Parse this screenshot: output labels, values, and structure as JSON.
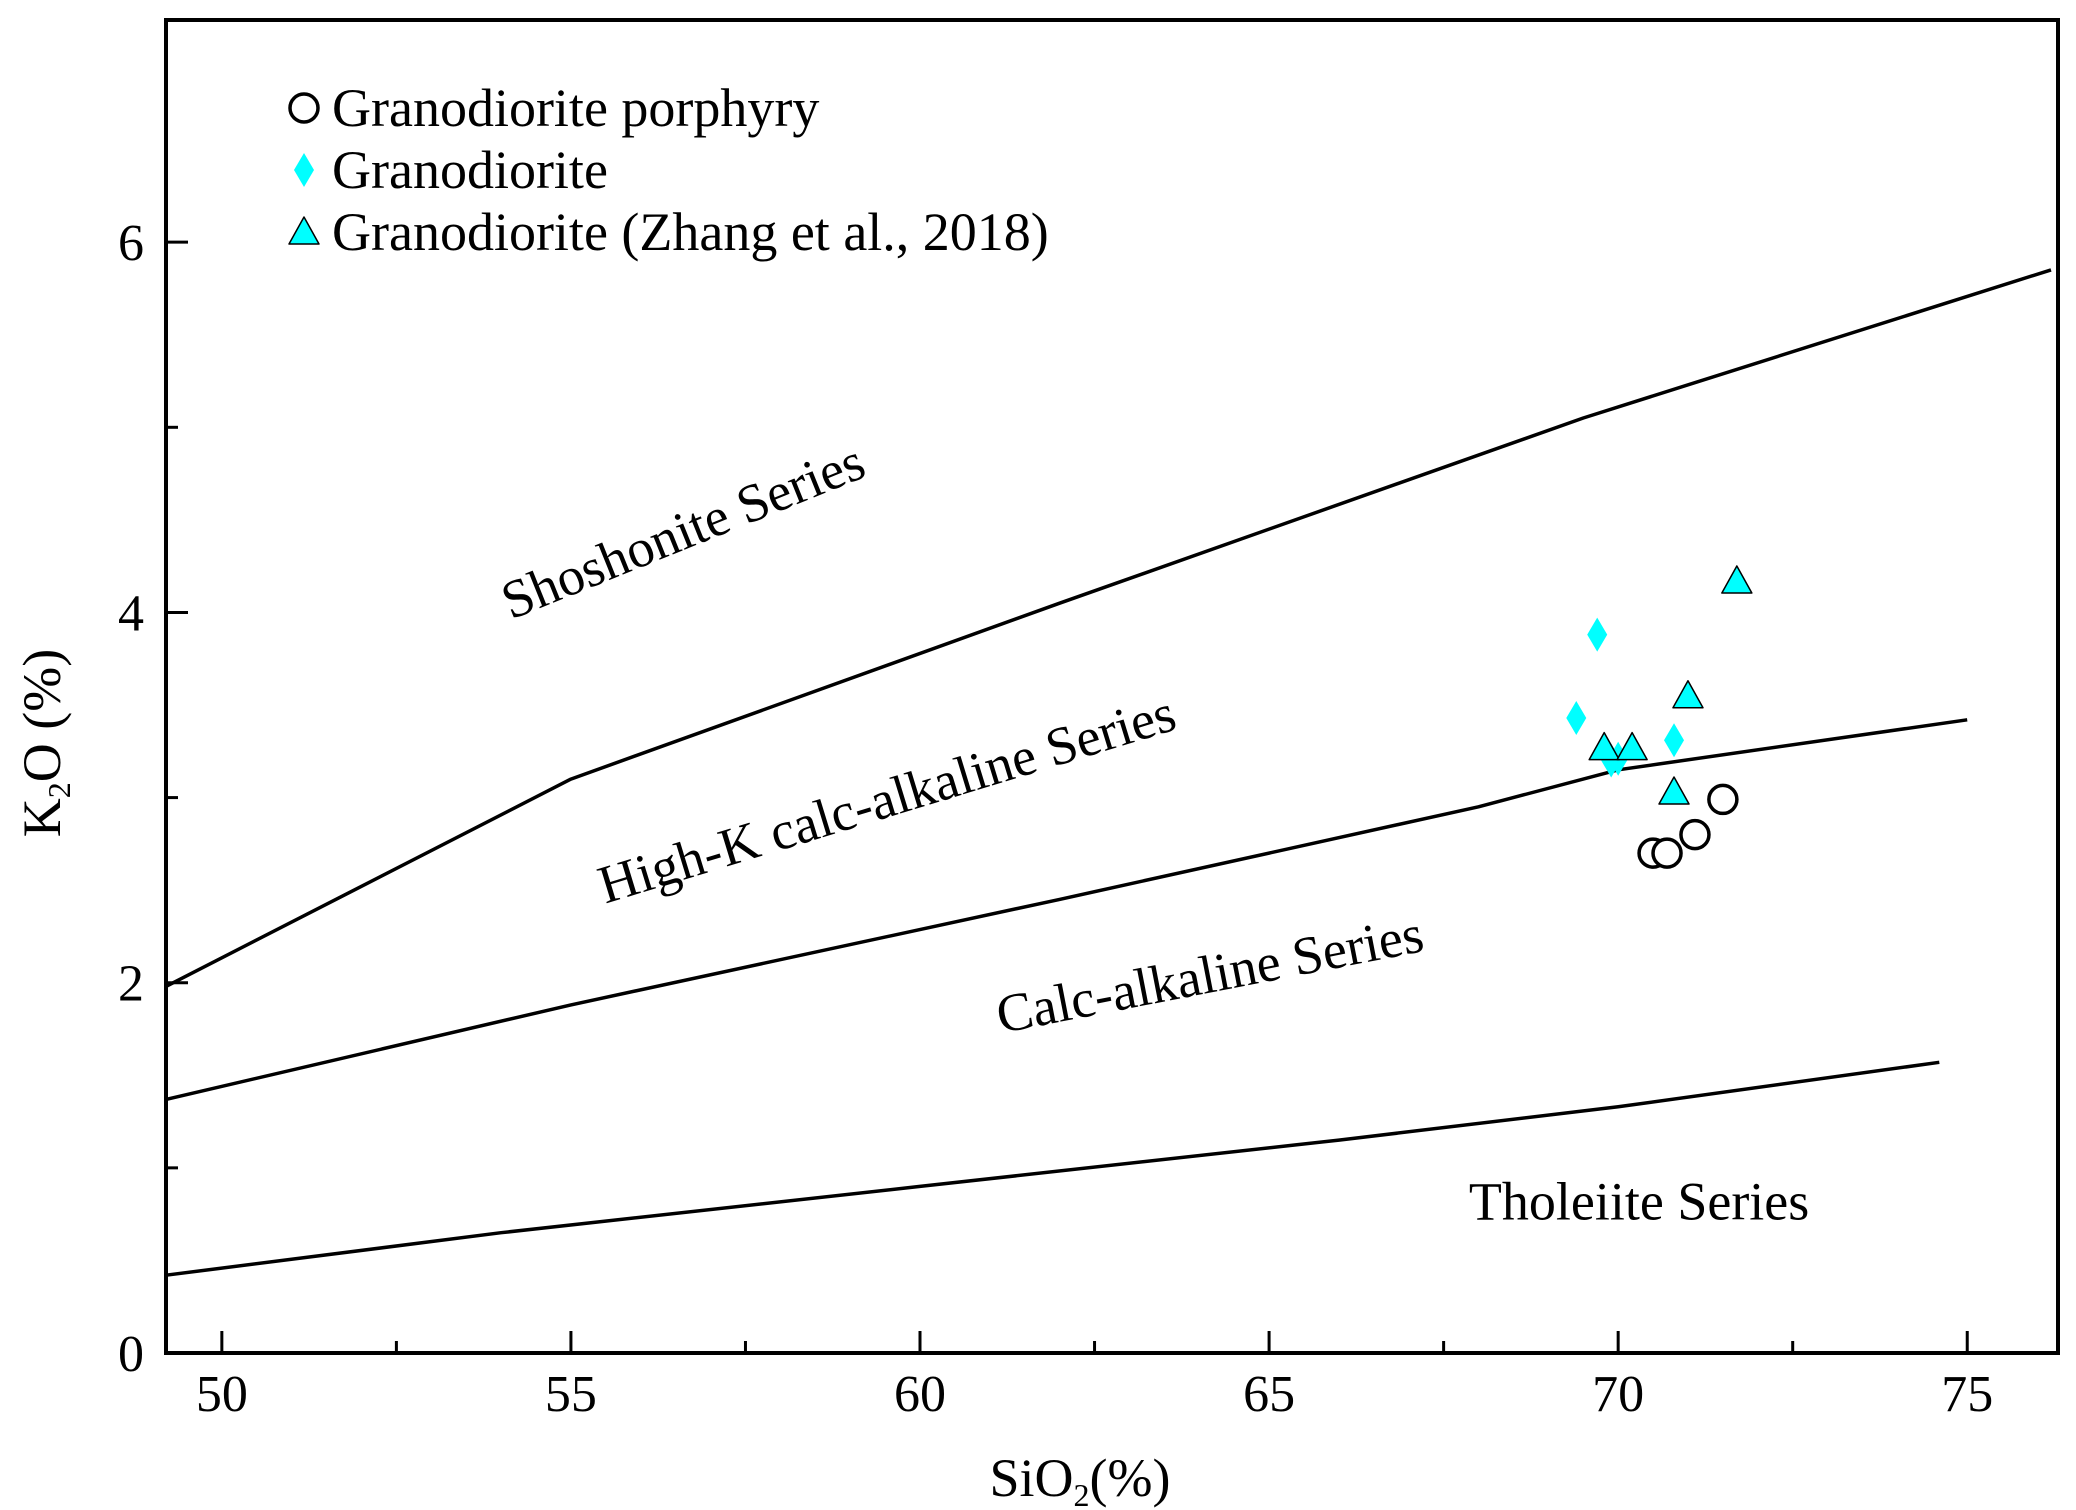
{
  "chart_data": {
    "type": "scatter",
    "title": "",
    "xlabel": {
      "main": "SiO",
      "sub": "2",
      "suffix": "(%)"
    },
    "ylabel": {
      "main": "K",
      "sub": "2",
      "suffix": "O (%)"
    },
    "xlim": [
      49.2,
      76.3
    ],
    "ylim": [
      0,
      7.2
    ],
    "x_ticks": [
      50,
      55,
      60,
      65,
      70,
      75
    ],
    "x_minor_ticks": [
      52.5,
      57.5,
      62.5,
      67.5,
      72.5
    ],
    "y_ticks": [
      0,
      2,
      4,
      6
    ],
    "y_minor_ticks": [
      1,
      3,
      5
    ],
    "colors": {
      "cyan": "#00FFFF",
      "line": "#000000"
    },
    "legend": {
      "position": "top-left",
      "entries": [
        {
          "name": "Granodiorite porphyry",
          "marker": "open-circle"
        },
        {
          "name": "Granodiorite",
          "marker": "cyan-diamond"
        },
        {
          "name": "Granodiorite (Zhang et al., 2018)",
          "marker": "cyan-triangle"
        }
      ]
    },
    "boundary_lines": [
      {
        "name": "shoshonite-boundary",
        "points": [
          [
            49.2,
            1.98
          ],
          [
            55.0,
            3.1
          ],
          [
            62.0,
            4.05
          ],
          [
            69.5,
            5.05
          ],
          [
            76.2,
            5.85
          ]
        ]
      },
      {
        "name": "high-k-boundary",
        "points": [
          [
            49.2,
            1.37
          ],
          [
            55.0,
            1.88
          ],
          [
            62.0,
            2.45
          ],
          [
            68.0,
            2.95
          ],
          [
            70.0,
            3.15
          ],
          [
            75.0,
            3.42
          ]
        ]
      },
      {
        "name": "calc-alkaline-boundary",
        "points": [
          [
            49.2,
            1.43
          ],
          [
            54.0,
            1.8
          ],
          [
            59.0,
            2.18
          ],
          [
            63.5,
            2.58
          ],
          [
            68.5,
            2.97
          ],
          [
            70.0,
            3.13
          ],
          [
            75.0,
            3.42
          ]
        ]
      },
      {
        "name": "tholeiite-boundary",
        "points": [
          [
            49.2,
            0.42
          ],
          [
            54.0,
            0.65
          ],
          [
            60.0,
            0.9
          ],
          [
            66.0,
            1.15
          ],
          [
            70.0,
            1.33
          ],
          [
            74.6,
            1.57
          ]
        ]
      }
    ],
    "region_labels": [
      {
        "text": "Shoshonite Series",
        "x": 56.7,
        "y": 4.35,
        "angle": 22
      },
      {
        "text": "High-K calc-alkaline Series",
        "x": 59.6,
        "y": 2.9,
        "angle": 17
      },
      {
        "text": "Calc-alkaline Series",
        "x": 64.2,
        "y": 1.95,
        "angle": 11
      },
      {
        "text": "Tholeiite Series",
        "x": 70.3,
        "y": 0.72,
        "angle": 0
      }
    ],
    "series": [
      {
        "name": "Granodiorite porphyry",
        "marker": "open-circle",
        "points": [
          [
            70.5,
            2.7
          ],
          [
            70.7,
            2.7
          ],
          [
            71.1,
            2.8
          ],
          [
            71.5,
            2.99
          ]
        ]
      },
      {
        "name": "Granodiorite",
        "marker": "cyan-diamond",
        "points": [
          [
            69.7,
            3.88
          ],
          [
            69.4,
            3.43
          ],
          [
            70.8,
            3.31
          ],
          [
            69.9,
            3.2
          ],
          [
            70.0,
            3.21
          ]
        ]
      },
      {
        "name": "Granodiorite (Zhang et al., 2018)",
        "marker": "cyan-triangle",
        "points": [
          [
            71.7,
            4.17
          ],
          [
            71.0,
            3.55
          ],
          [
            69.8,
            3.27
          ],
          [
            70.2,
            3.27
          ],
          [
            70.8,
            3.03
          ]
        ]
      }
    ]
  }
}
